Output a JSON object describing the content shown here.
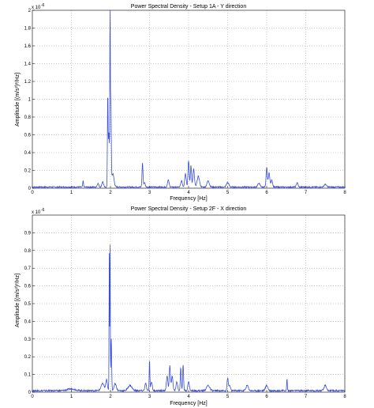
{
  "chart_data": [
    {
      "type": "line",
      "title": "Power Spectral Density - Setup 1A - Y direction",
      "xlabel": "Frequency [Hz]",
      "ylabel": "Amplitude [(m/s²)²/Hz]",
      "exponent_label": "x 10",
      "exponent_power": "-6",
      "xlim": [
        0,
        8
      ],
      "ylim": [
        0,
        2
      ],
      "xticks": [
        "0",
        "1",
        "2",
        "3",
        "4",
        "5",
        "6",
        "7",
        "8"
      ],
      "yticks": [
        "0",
        "0.2",
        "0.4",
        "0.6",
        "0.8",
        "1",
        "1.2",
        "1.4",
        "1.6",
        "1.8",
        "2"
      ],
      "grid": true,
      "line_color": "#3a4fd6",
      "peaks": [
        {
          "f": 1.3,
          "a": 0.07,
          "w": 0.01
        },
        {
          "f": 1.68,
          "a": 0.04,
          "w": 0.02
        },
        {
          "f": 1.8,
          "a": 0.06,
          "w": 0.02
        },
        {
          "f": 1.93,
          "a": 1.0,
          "w": 0.008
        },
        {
          "f": 1.96,
          "a": 0.62,
          "w": 0.015
        },
        {
          "f": 1.99,
          "a": 2.0,
          "w": 0.006
        },
        {
          "f": 2.01,
          "a": 0.95,
          "w": 0.01
        },
        {
          "f": 2.06,
          "a": 0.15,
          "w": 0.03
        },
        {
          "f": 2.82,
          "a": 0.27,
          "w": 0.012
        },
        {
          "f": 2.87,
          "a": 0.05,
          "w": 0.02
        },
        {
          "f": 3.48,
          "a": 0.08,
          "w": 0.02
        },
        {
          "f": 3.82,
          "a": 0.07,
          "w": 0.02
        },
        {
          "f": 3.92,
          "a": 0.15,
          "w": 0.02
        },
        {
          "f": 4.0,
          "a": 0.3,
          "w": 0.015
        },
        {
          "f": 4.06,
          "a": 0.24,
          "w": 0.015
        },
        {
          "f": 4.13,
          "a": 0.2,
          "w": 0.02
        },
        {
          "f": 4.25,
          "a": 0.12,
          "w": 0.03
        },
        {
          "f": 4.5,
          "a": 0.07,
          "w": 0.03
        },
        {
          "f": 5.0,
          "a": 0.05,
          "w": 0.03
        },
        {
          "f": 5.8,
          "a": 0.04,
          "w": 0.03
        },
        {
          "f": 6.0,
          "a": 0.22,
          "w": 0.015
        },
        {
          "f": 6.06,
          "a": 0.16,
          "w": 0.02
        },
        {
          "f": 6.13,
          "a": 0.08,
          "w": 0.02
        },
        {
          "f": 6.78,
          "a": 0.05,
          "w": 0.02
        },
        {
          "f": 7.5,
          "a": 0.03,
          "w": 0.03
        }
      ],
      "noise_floor": 0.015
    },
    {
      "type": "line",
      "title": "Power Spectral Density - Setup 2F - X direction",
      "xlabel": "Frequency [Hz]",
      "ylabel": "Amplitude [(m/s²)²/Hz]",
      "exponent_label": "x 10",
      "exponent_power": "-6",
      "xlim": [
        0,
        8
      ],
      "ylim": [
        0,
        1
      ],
      "xticks": [
        "0",
        "1",
        "2",
        "3",
        "4",
        "5",
        "6",
        "7",
        "8"
      ],
      "yticks": [
        "0",
        "0.1",
        "0.2",
        "0.3",
        "0.4",
        "0.5",
        "0.6",
        "0.7",
        "0.8",
        "0.9"
      ],
      "grid": true,
      "line_color": "#3a4fd6",
      "peaks": [
        {
          "f": 1.0,
          "a": 0.01,
          "w": 0.1
        },
        {
          "f": 1.8,
          "a": 0.04,
          "w": 0.04
        },
        {
          "f": 1.9,
          "a": 0.06,
          "w": 0.02
        },
        {
          "f": 1.97,
          "a": 0.78,
          "w": 0.006
        },
        {
          "f": 1.99,
          "a": 0.95,
          "w": 0.005
        },
        {
          "f": 2.02,
          "a": 0.3,
          "w": 0.01
        },
        {
          "f": 2.12,
          "a": 0.04,
          "w": 0.03
        },
        {
          "f": 2.5,
          "a": 0.03,
          "w": 0.05
        },
        {
          "f": 2.9,
          "a": 0.04,
          "w": 0.02
        },
        {
          "f": 3.0,
          "a": 0.18,
          "w": 0.008
        },
        {
          "f": 3.05,
          "a": 0.05,
          "w": 0.02
        },
        {
          "f": 3.45,
          "a": 0.08,
          "w": 0.02
        },
        {
          "f": 3.52,
          "a": 0.14,
          "w": 0.015
        },
        {
          "f": 3.58,
          "a": 0.08,
          "w": 0.02
        },
        {
          "f": 3.7,
          "a": 0.05,
          "w": 0.02
        },
        {
          "f": 3.8,
          "a": 0.13,
          "w": 0.012
        },
        {
          "f": 3.86,
          "a": 0.15,
          "w": 0.012
        },
        {
          "f": 4.0,
          "a": 0.05,
          "w": 0.02
        },
        {
          "f": 4.5,
          "a": 0.03,
          "w": 0.04
        },
        {
          "f": 5.0,
          "a": 0.07,
          "w": 0.015
        },
        {
          "f": 5.05,
          "a": 0.03,
          "w": 0.02
        },
        {
          "f": 5.5,
          "a": 0.03,
          "w": 0.03
        },
        {
          "f": 6.0,
          "a": 0.03,
          "w": 0.03
        },
        {
          "f": 6.52,
          "a": 0.07,
          "w": 0.008
        },
        {
          "f": 7.5,
          "a": 0.03,
          "w": 0.03
        }
      ],
      "noise_floor": 0.01
    }
  ]
}
